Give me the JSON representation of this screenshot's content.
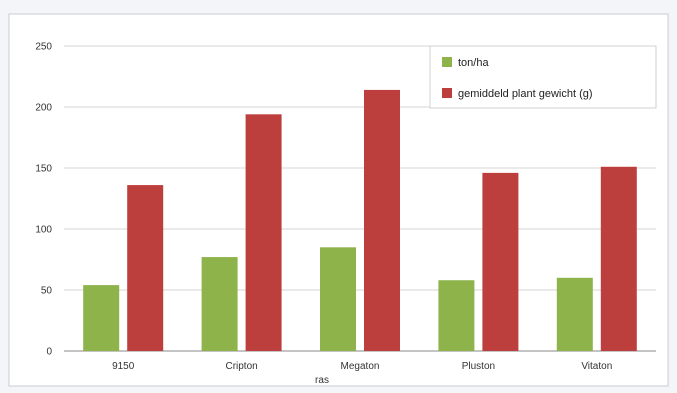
{
  "chart_data": {
    "type": "bar",
    "title": "",
    "xlabel": "ras",
    "ylabel": "",
    "categories": [
      "9150",
      "Cripton",
      "Megaton",
      "Pluston",
      "Vitaton"
    ],
    "series": [
      {
        "name": "ton/ha",
        "color": "#8db34a",
        "values": [
          54,
          77,
          85,
          58,
          60
        ]
      },
      {
        "name": "gemiddeld plant gewicht (g)",
        "color": "#bd3f3d",
        "values": [
          136,
          194,
          214,
          146,
          151
        ]
      }
    ],
    "ylim": [
      0,
      250
    ],
    "yticks": [
      0,
      50,
      100,
      150,
      200,
      250
    ],
    "grid": true,
    "legend_position": "top-right"
  }
}
